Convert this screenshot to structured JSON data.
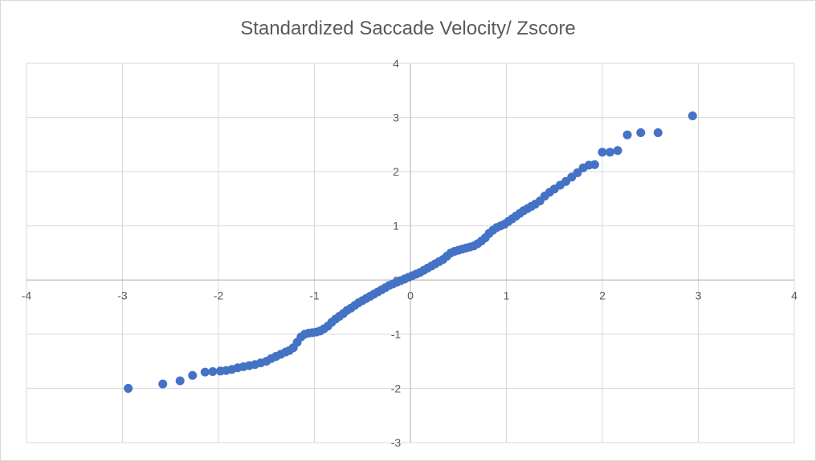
{
  "chart_data": {
    "type": "scatter",
    "title": "Standardized Saccade Velocity/ Zscore",
    "xlabel": "",
    "ylabel": "",
    "xlim": [
      -4,
      4
    ],
    "ylim": [
      -3,
      4
    ],
    "x_ticks": [
      "-4",
      "-3",
      "-2",
      "-1",
      "0",
      "1",
      "2",
      "3",
      "4"
    ],
    "y_ticks": [
      "-3",
      "-2",
      "-1",
      "0",
      "1",
      "2",
      "3",
      "4"
    ],
    "grid": true,
    "legend": "none",
    "marker_color": "#4472c4",
    "series": [
      {
        "x": [
          -2.94,
          -2.58,
          -2.4,
          -2.27,
          -2.14,
          -2.06,
          -1.98,
          -1.92,
          -1.86,
          -1.8,
          -1.74,
          -1.68,
          -1.62,
          -1.56,
          -1.5,
          -1.45,
          -1.4,
          -1.35,
          -1.3,
          -1.26,
          -1.22,
          -1.18,
          -1.14,
          -1.1,
          -1.06,
          -1.02,
          -0.98,
          -0.94,
          -0.9,
          -0.86,
          -0.82,
          -0.78,
          -0.74,
          -0.7,
          -0.66,
          -0.62,
          -0.58,
          -0.54,
          -0.5,
          -0.46,
          -0.42,
          -0.38,
          -0.34,
          -0.3,
          -0.26,
          -0.22,
          -0.18,
          -0.14,
          -0.1,
          -0.06,
          -0.02,
          0.02,
          0.06,
          0.1,
          0.14,
          0.18,
          0.22,
          0.26,
          0.3,
          0.34,
          0.38,
          0.42,
          0.46,
          0.5,
          0.54,
          0.58,
          0.62,
          0.66,
          0.7,
          0.74,
          0.78,
          0.82,
          0.86,
          0.9,
          0.94,
          0.98,
          1.02,
          1.06,
          1.1,
          1.14,
          1.18,
          1.22,
          1.26,
          1.3,
          1.35,
          1.4,
          1.45,
          1.5,
          1.56,
          1.62,
          1.68,
          1.74,
          1.8,
          1.86,
          1.92,
          2.0,
          2.08,
          2.16,
          2.26,
          2.4,
          2.58,
          2.94
        ],
        "y": [
          -2.0,
          -1.92,
          -1.86,
          -1.76,
          -1.7,
          -1.69,
          -1.68,
          -1.67,
          -1.65,
          -1.62,
          -1.6,
          -1.58,
          -1.56,
          -1.53,
          -1.5,
          -1.45,
          -1.41,
          -1.37,
          -1.33,
          -1.3,
          -1.25,
          -1.15,
          -1.05,
          -1.0,
          -0.98,
          -0.97,
          -0.96,
          -0.94,
          -0.9,
          -0.85,
          -0.78,
          -0.72,
          -0.67,
          -0.62,
          -0.56,
          -0.52,
          -0.47,
          -0.42,
          -0.38,
          -0.34,
          -0.3,
          -0.26,
          -0.22,
          -0.18,
          -0.14,
          -0.1,
          -0.07,
          -0.04,
          -0.01,
          0.02,
          0.05,
          0.08,
          0.11,
          0.14,
          0.18,
          0.22,
          0.26,
          0.3,
          0.34,
          0.38,
          0.44,
          0.5,
          0.53,
          0.55,
          0.57,
          0.59,
          0.61,
          0.63,
          0.67,
          0.72,
          0.78,
          0.86,
          0.92,
          0.97,
          1.0,
          1.03,
          1.08,
          1.13,
          1.18,
          1.23,
          1.28,
          1.32,
          1.36,
          1.4,
          1.46,
          1.55,
          1.62,
          1.68,
          1.75,
          1.82,
          1.9,
          1.98,
          2.07,
          2.12,
          2.13,
          2.36,
          2.36,
          2.39,
          2.68,
          2.72,
          2.72,
          3.03
        ]
      }
    ]
  }
}
